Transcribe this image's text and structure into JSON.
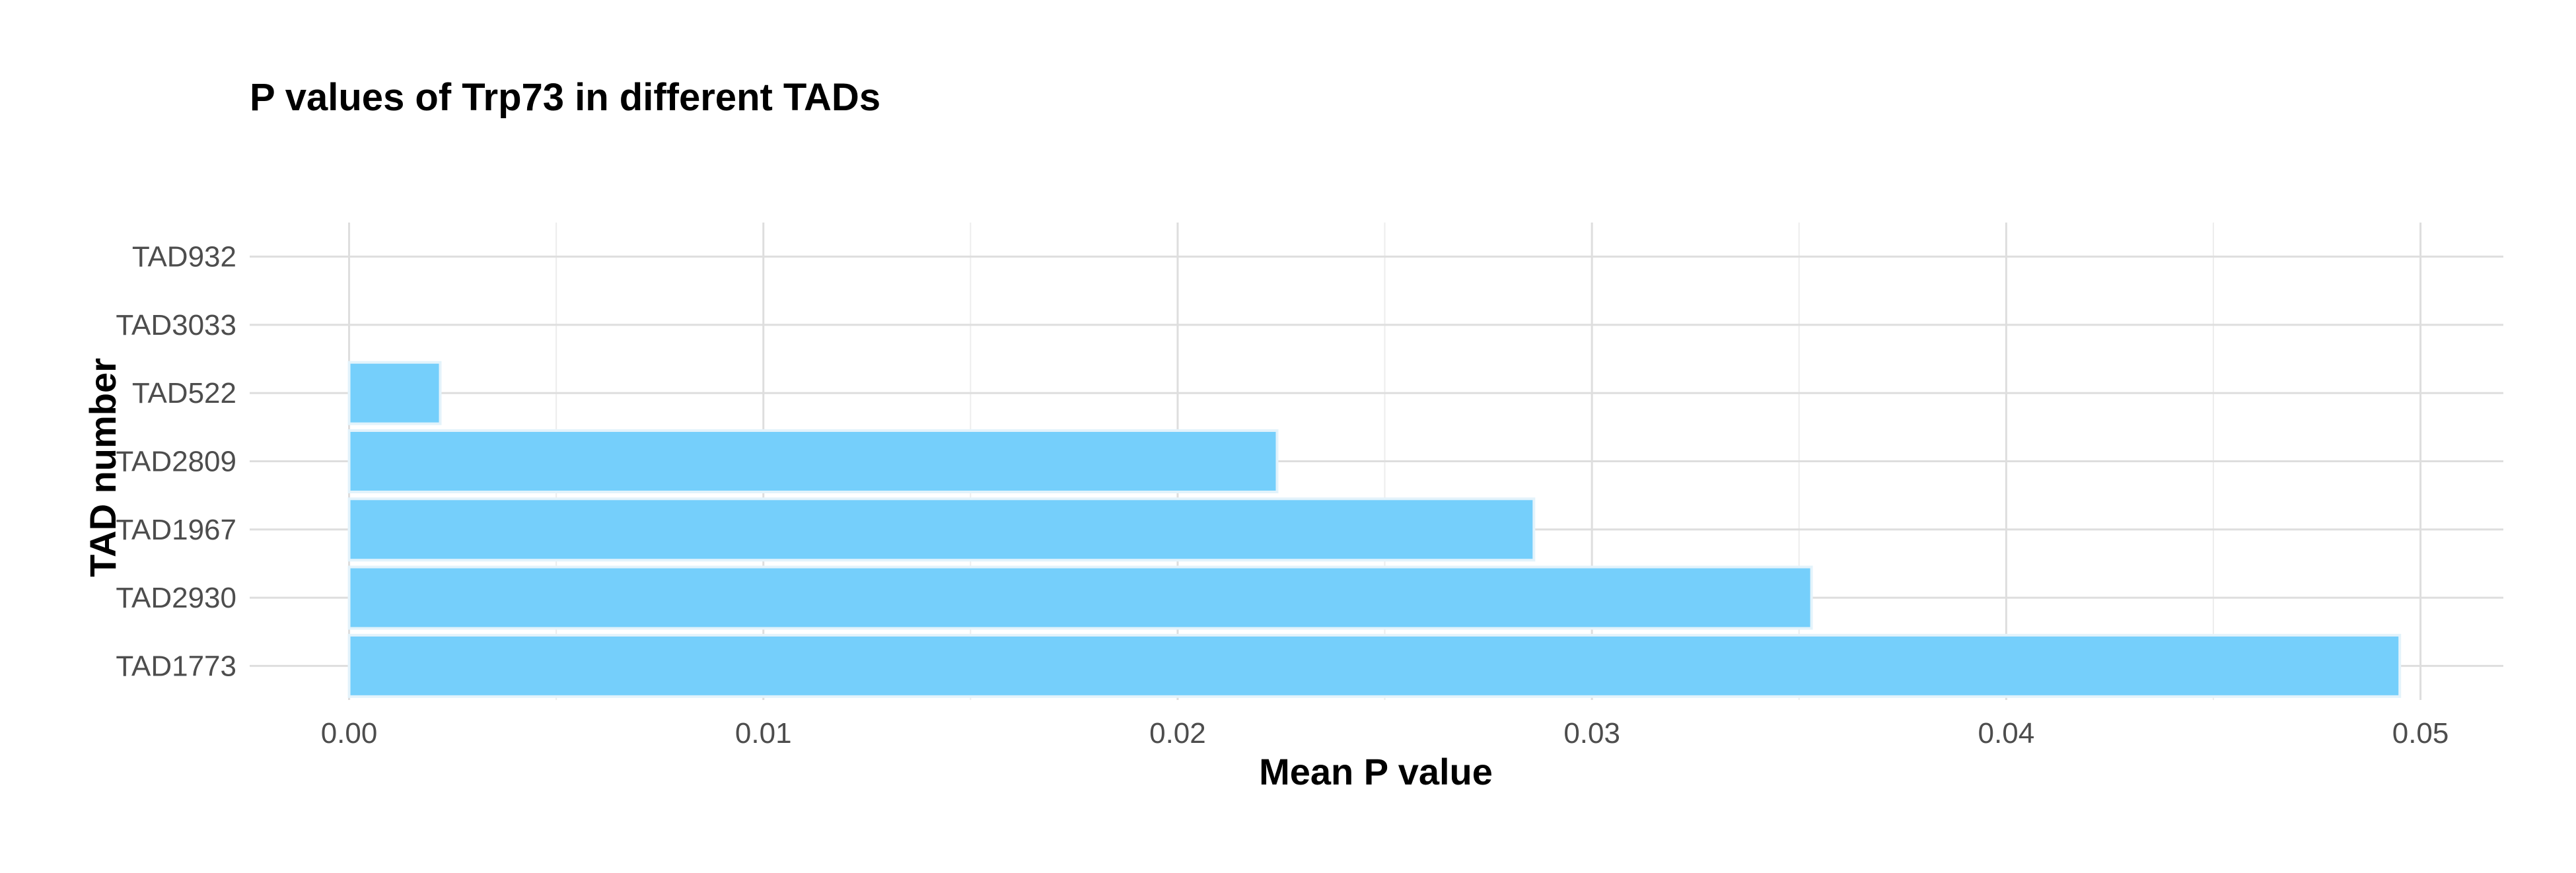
{
  "chart_data": {
    "type": "bar",
    "orientation": "horizontal",
    "title": "P values of Trp73 in different TADs",
    "xlabel": "Mean P value",
    "ylabel": "TAD number",
    "categories": [
      "TAD1773",
      "TAD2930",
      "TAD1967",
      "TAD2809",
      "TAD522",
      "TAD3033",
      "TAD932"
    ],
    "values": [
      0.0495,
      0.0353,
      0.0286,
      0.0224,
      0.0022,
      0,
      0
    ],
    "xlim": [
      -0.0024,
      0.052
    ],
    "xticks": [
      0,
      0.01,
      0.02,
      0.03,
      0.04,
      0.05
    ],
    "xtick_labels": [
      "0.00",
      "0.01",
      "0.02",
      "0.03",
      "0.04",
      "0.05"
    ],
    "grid": true,
    "legend": "none",
    "colors": {
      "bar_fill": "#75CFFB",
      "bar_edge": "#E3F3FB",
      "grid_major": "#DEDEDE",
      "grid_minor": "#EDEDED",
      "background": "#FFFFFF"
    }
  }
}
